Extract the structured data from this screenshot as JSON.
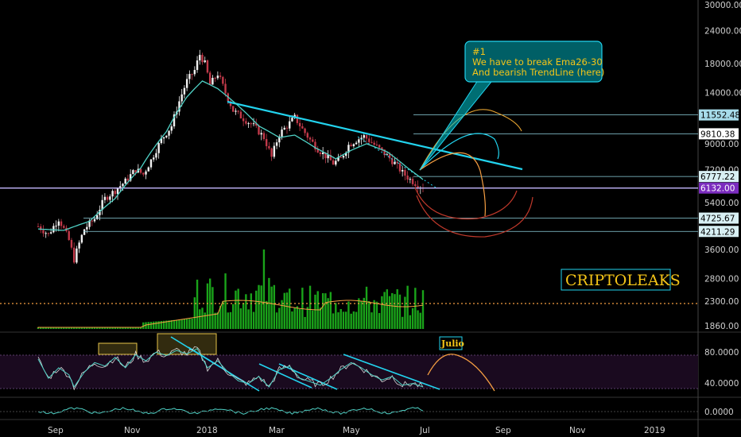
{
  "chart_data": {
    "type": "candlestick",
    "price_axis": {
      "scale": "log",
      "ticks": [
        "30000.00",
        "24000.00",
        "18000.00",
        "14000.00",
        "9000.00",
        "7200.00",
        "5400.00",
        "3600.00",
        "2800.00",
        "2300.00",
        "1860.00"
      ],
      "tick_values": [
        30000,
        24000,
        18000,
        14000,
        9000,
        7200,
        5400,
        3600,
        2800,
        2300,
        1860
      ]
    },
    "price_tags": [
      {
        "label": "11552.48",
        "value": 11552.48,
        "bg": "#a7dcea",
        "fg": "#000000"
      },
      {
        "label": "9810.38",
        "value": 9810.38,
        "bg": "#ffffff",
        "fg": "#000000"
      },
      {
        "label": "6777.22",
        "value": 6777.22,
        "bg": "#d8f0f4",
        "fg": "#000000"
      },
      {
        "label": "6132.00",
        "value": 6132.0,
        "bg": "#7b2cbf",
        "fg": "#ffffff"
      },
      {
        "label": "4725.67",
        "value": 4725.67,
        "bg": "#d8f0f4",
        "fg": "#000000"
      },
      {
        "label": "4211.29",
        "value": 4211.29,
        "bg": "#d8f0f4",
        "fg": "#000000"
      }
    ],
    "time_axis": [
      "Sep",
      "Nov",
      "2018",
      "Mar",
      "May",
      "Jul",
      "Sep",
      "Nov",
      "2019"
    ],
    "volume_avg_level": 2300,
    "rsi_axis": {
      "ticks": [
        "80.0000",
        "40.0000"
      ],
      "tick_values": [
        80,
        40
      ]
    },
    "osc_axis": {
      "ticks": [
        "0.0000"
      ],
      "tick_values": [
        0
      ]
    },
    "price_series": {
      "name": "",
      "points": [
        [
          0,
          4400
        ],
        [
          4,
          4100
        ],
        [
          8,
          4700
        ],
        [
          12,
          3900
        ],
        [
          14,
          3300
        ],
        [
          18,
          4300
        ],
        [
          22,
          4700
        ],
        [
          26,
          5600
        ],
        [
          30,
          6000
        ],
        [
          34,
          6500
        ],
        [
          38,
          7200
        ],
        [
          41,
          6900
        ],
        [
          44,
          7800
        ],
        [
          48,
          9300
        ],
        [
          52,
          10500
        ],
        [
          55,
          13000
        ],
        [
          58,
          15500
        ],
        [
          61,
          17000
        ],
        [
          63,
          19500
        ],
        [
          65,
          18000
        ],
        [
          67,
          15000
        ],
        [
          70,
          16500
        ],
        [
          73,
          14000
        ],
        [
          76,
          12000
        ],
        [
          80,
          11200
        ],
        [
          84,
          10500
        ],
        [
          88,
          9500
        ],
        [
          91,
          8000
        ],
        [
          94,
          9800
        ],
        [
          97,
          10500
        ],
        [
          100,
          11300
        ],
        [
          103,
          10200
        ],
        [
          106,
          9300
        ],
        [
          109,
          8600
        ],
        [
          112,
          8100
        ],
        [
          115,
          7600
        ],
        [
          118,
          7900
        ],
        [
          121,
          8900
        ],
        [
          124,
          9300
        ],
        [
          127,
          9600
        ],
        [
          130,
          9100
        ],
        [
          133,
          8600
        ],
        [
          136,
          8100
        ],
        [
          139,
          7600
        ],
        [
          142,
          7000
        ],
        [
          145,
          6600
        ],
        [
          148,
          6300
        ],
        [
          150,
          6200
        ]
      ]
    },
    "ema_series": {
      "name": "Ema26-30",
      "points": [
        [
          0,
          4300
        ],
        [
          10,
          4250
        ],
        [
          20,
          4600
        ],
        [
          30,
          5600
        ],
        [
          40,
          7300
        ],
        [
          50,
          10000
        ],
        [
          58,
          13500
        ],
        [
          64,
          15500
        ],
        [
          70,
          14500
        ],
        [
          78,
          12500
        ],
        [
          86,
          10500
        ],
        [
          94,
          9500
        ],
        [
          100,
          9700
        ],
        [
          108,
          8700
        ],
        [
          116,
          7900
        ],
        [
          122,
          8500
        ],
        [
          128,
          9000
        ],
        [
          136,
          8400
        ],
        [
          144,
          7300
        ],
        [
          150,
          6600
        ]
      ]
    },
    "rsi_series": {
      "name": "",
      "points": [
        [
          0,
          70
        ],
        [
          4,
          48
        ],
        [
          8,
          60
        ],
        [
          12,
          52
        ],
        [
          14,
          38
        ],
        [
          18,
          55
        ],
        [
          22,
          66
        ],
        [
          26,
          62
        ],
        [
          30,
          72
        ],
        [
          34,
          60
        ],
        [
          38,
          75
        ],
        [
          42,
          68
        ],
        [
          46,
          78
        ],
        [
          50,
          74
        ],
        [
          54,
          80
        ],
        [
          58,
          76
        ],
        [
          62,
          82
        ],
        [
          66,
          60
        ],
        [
          70,
          68
        ],
        [
          74,
          55
        ],
        [
          78,
          45
        ],
        [
          82,
          42
        ],
        [
          86,
          50
        ],
        [
          90,
          38
        ],
        [
          94,
          58
        ],
        [
          98,
          62
        ],
        [
          102,
          48
        ],
        [
          106,
          44
        ],
        [
          110,
          40
        ],
        [
          114,
          48
        ],
        [
          118,
          58
        ],
        [
          122,
          66
        ],
        [
          126,
          60
        ],
        [
          130,
          52
        ],
        [
          134,
          46
        ],
        [
          138,
          50
        ],
        [
          142,
          40
        ],
        [
          146,
          42
        ],
        [
          150,
          38
        ]
      ]
    },
    "annotation": {
      "lines": [
        "#1",
        "We have to break Ema26-30",
        "And bearish TrendLine (here)"
      ]
    },
    "watermark": "CRIPTOLEAKS",
    "month_label": "Julio"
  }
}
